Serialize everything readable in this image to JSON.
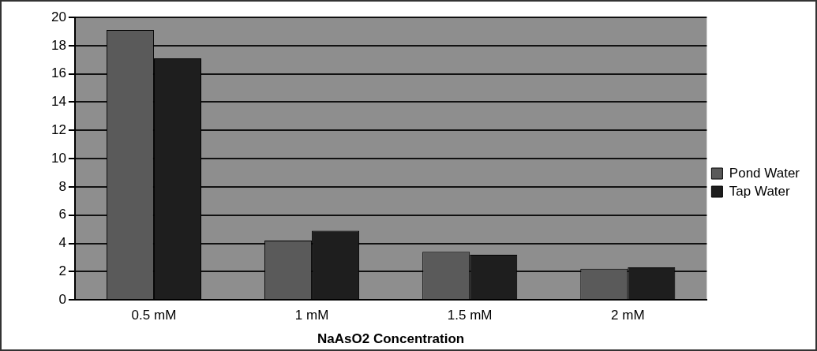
{
  "chart_data": {
    "type": "bar",
    "xlabel": "NaAsO2 Concentration",
    "categories": [
      "0.5 mM",
      "1 mM",
      "1.5 mM",
      "2 mM"
    ],
    "series": [
      {
        "name": "Pond Water",
        "color": "#5a5a5a",
        "values": [
          19.1,
          4.2,
          3.4,
          2.2
        ]
      },
      {
        "name": "Tap Water",
        "color": "#1e1e1e",
        "values": [
          17.1,
          4.9,
          3.2,
          2.3
        ]
      }
    ],
    "ylim": [
      0,
      20
    ],
    "yticks": [
      0,
      2,
      4,
      6,
      8,
      10,
      12,
      14,
      16,
      18,
      20
    ],
    "grid": "y",
    "legend": "right"
  }
}
